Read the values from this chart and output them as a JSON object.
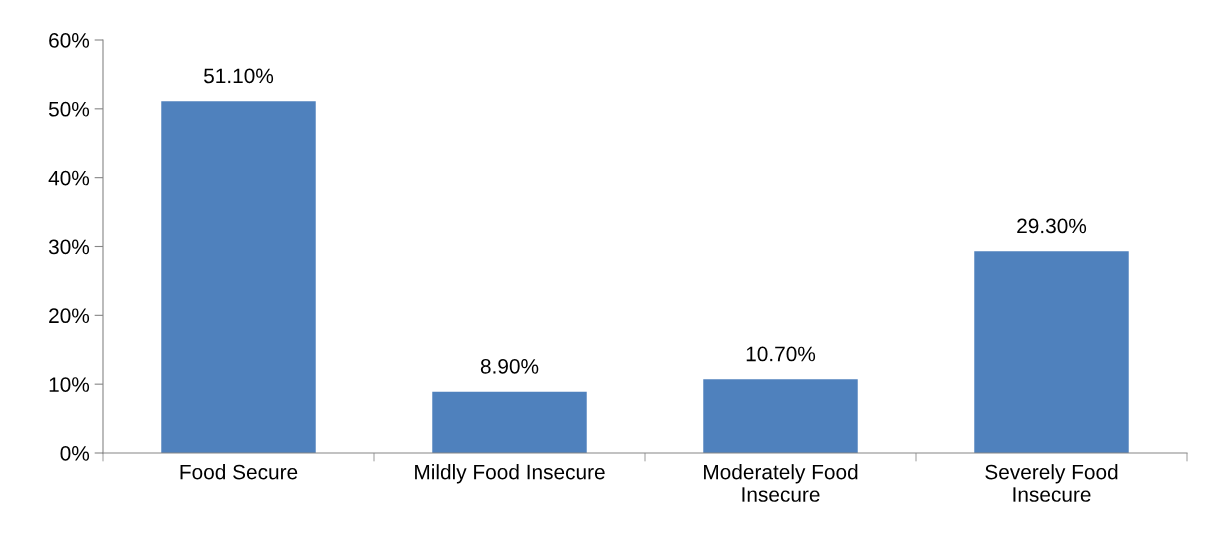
{
  "chart_data": {
    "type": "bar",
    "categories": [
      "Food Secure",
      "Mildly Food Insecure",
      "Moderately Food\nInsecure",
      "Severely Food\nInsecure"
    ],
    "values": [
      51.1,
      8.9,
      10.7,
      29.3
    ],
    "value_labels": [
      "51.10%",
      "8.90%",
      "10.70%",
      "29.30%"
    ],
    "color": "#4f81bd",
    "ylim": [
      0,
      60
    ],
    "yticks": [
      {
        "value": 0,
        "label": "0%"
      },
      {
        "value": 10,
        "label": "10%"
      },
      {
        "value": 20,
        "label": "20%"
      },
      {
        "value": 30,
        "label": "30%"
      },
      {
        "value": 40,
        "label": "40%"
      },
      {
        "value": 50,
        "label": "50%"
      },
      {
        "value": 60,
        "label": "60%"
      }
    ],
    "grid": false,
    "legend": false
  }
}
